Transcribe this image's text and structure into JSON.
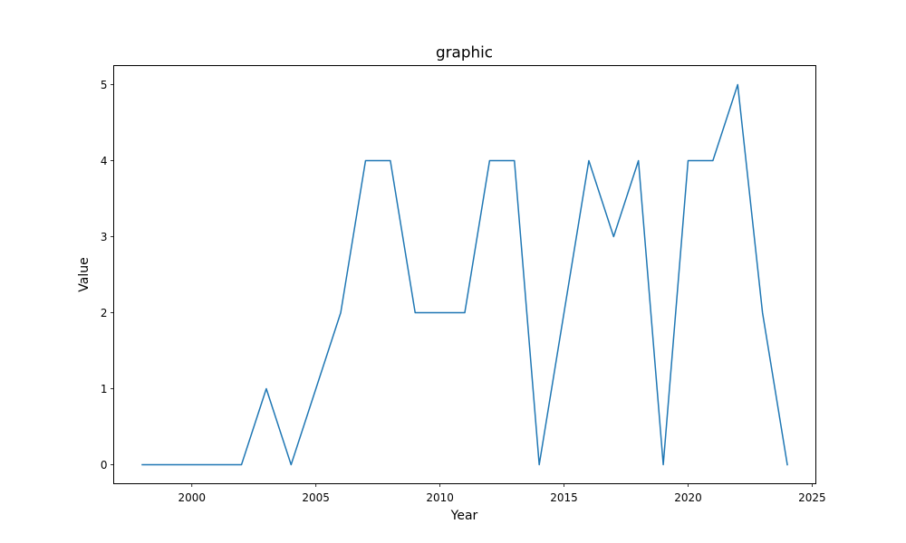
{
  "chart_data": {
    "type": "line",
    "title": "graphic",
    "xlabel": "Year",
    "ylabel": "Value",
    "xlim": [
      1996.85,
      2025.15
    ],
    "ylim": [
      -0.25,
      5.25
    ],
    "xticks": [
      2000,
      2005,
      2010,
      2015,
      2020,
      2025
    ],
    "yticks": [
      0,
      1,
      2,
      3,
      4,
      5
    ],
    "grid": false,
    "line_color": "#1f77b4",
    "series": [
      {
        "x": [
          1998,
          1999,
          2000,
          2001,
          2002,
          2003,
          2004,
          2005,
          2006,
          2007,
          2008,
          2009,
          2010,
          2011,
          2012,
          2013,
          2014,
          2015,
          2016,
          2017,
          2018,
          2019,
          2020,
          2021,
          2022,
          2023,
          2024
        ],
        "values": [
          0,
          0,
          0,
          0,
          0,
          1,
          0,
          1,
          2,
          4,
          4,
          2,
          2,
          2,
          4,
          4,
          0,
          2,
          4,
          3,
          4,
          0,
          4,
          4,
          5,
          2,
          0
        ]
      }
    ]
  }
}
